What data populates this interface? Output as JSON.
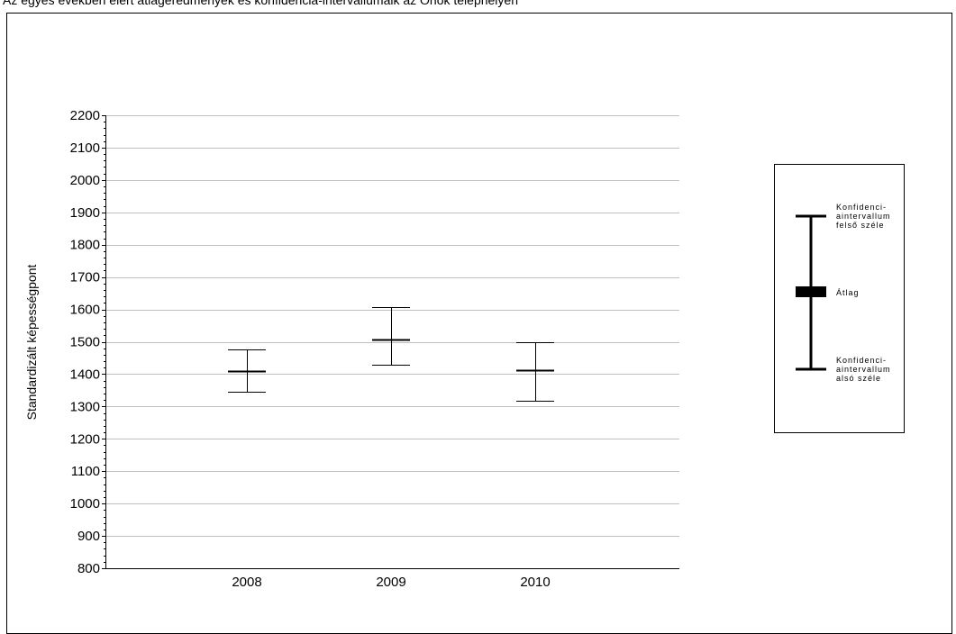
{
  "title": "Az egyes években elért átlageredmények és konfidencia-intervallumaik az Önök telephelyén",
  "chart_data": {
    "type": "errorbar",
    "title": "Az egyes években elért átlageredmények és konfidencia-intervallumaik az Önök telephelyén",
    "ylabel": "Standardizált képességpont",
    "xlabel": "",
    "ylim": [
      800,
      2200
    ],
    "yticks": [
      800,
      900,
      1000,
      1100,
      1200,
      1300,
      1400,
      1500,
      1600,
      1700,
      1800,
      1900,
      2000,
      2100,
      2200
    ],
    "grid": true,
    "categories": [
      "2008",
      "2009",
      "2010"
    ],
    "series": [
      {
        "mean": [
          1410,
          1507,
          1412
        ],
        "upper": [
          1475,
          1606,
          1500
        ],
        "lower": [
          1346,
          1429,
          1319
        ]
      }
    ]
  },
  "legend": {
    "upper_label": "Konfidenci-\naintervallum\nfelső széle",
    "mean_label": "Átlag",
    "lower_label": "Konfidenci-\naintervallum\nalsó széle"
  },
  "colors": {
    "axis": "#000000",
    "grid": "#c0c0c0",
    "series": "#000000"
  }
}
